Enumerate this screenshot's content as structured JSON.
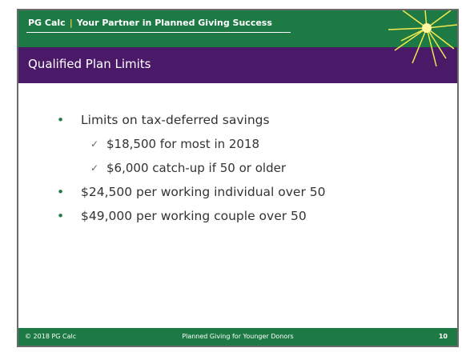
{
  "header": {
    "brand": "PG Calc",
    "separator": "|",
    "tagline": "Your Partner in Planned Giving Success"
  },
  "title": "Qualified Plan Limits",
  "bullets": [
    {
      "text": "Limits on tax-deferred savings",
      "subitems": [
        "$18,500 for most in 2018",
        "$6,000 catch-up if 50 or older"
      ]
    },
    {
      "text": "$24,500 per working individual over 50"
    },
    {
      "text": "$49,000 per working couple over 50"
    }
  ],
  "footer": {
    "copyright": "© 2018 PG Calc",
    "center": "Planned Giving for Younger Donors",
    "page": "10"
  }
}
